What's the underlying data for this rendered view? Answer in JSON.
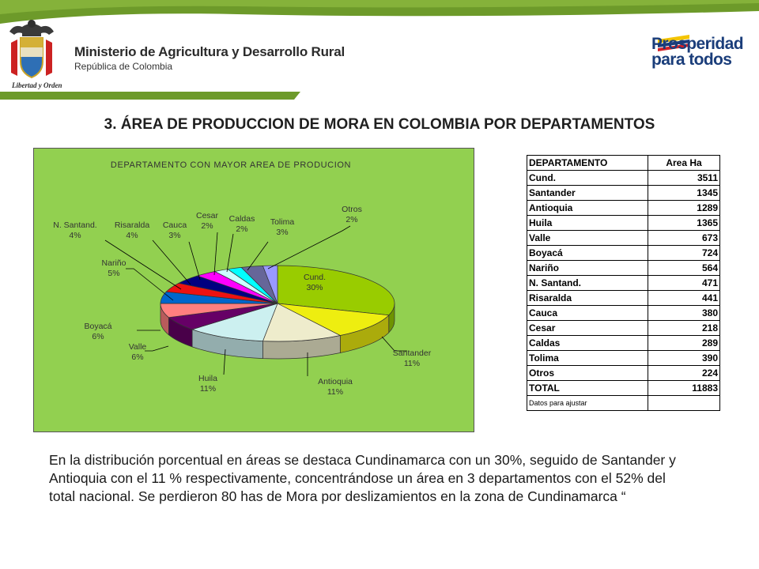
{
  "header": {
    "ministry_name": "Ministerio de Agricultura y Desarrollo Rural",
    "ministry_subtitle": "República de Colombia",
    "motto": "Libertad y Orden",
    "brand_line1": "Prosperidad",
    "brand_line2": "para todos",
    "colors": {
      "green_band": "#6d9a2a",
      "brand_blue": "#1a3d7a",
      "brand_red": "#d32027",
      "brand_yellow": "#f4c400"
    },
    "icons": {
      "coat_of_arms": "coat-of-arms-icon",
      "brand_flag": "flag-stripes-icon"
    }
  },
  "slide_title": "3. ÁREA DE PRODUCCION DE MORA EN COLOMBIA POR DEPARTAMENTOS",
  "chart_data": {
    "type": "pie",
    "title": "DEPARTAMENTO CON MAYOR AREA DE PRODUCION",
    "background": "#92d050",
    "slices": [
      {
        "label": "Cund.",
        "pct": "30%",
        "value": 30,
        "color": "#99cc00"
      },
      {
        "label": "Santander",
        "pct": "11%",
        "value": 11,
        "color": "#eeee10"
      },
      {
        "label": "Antioquia",
        "pct": "11%",
        "value": 11,
        "color": "#eeeccc"
      },
      {
        "label": "Huila",
        "pct": "11%",
        "value": 11,
        "color": "#ccf0f0"
      },
      {
        "label": "Valle",
        "pct": "6%",
        "value": 6,
        "color": "#660066"
      },
      {
        "label": "Boyacá",
        "pct": "6%",
        "value": 6,
        "color": "#ff7f7f"
      },
      {
        "label": "Nariño",
        "pct": "5%",
        "value": 5,
        "color": "#0066cc"
      },
      {
        "label": "N. Santand.",
        "pct": "4%",
        "value": 4,
        "color": "#ee1111"
      },
      {
        "label": "Risaralda",
        "pct": "4%",
        "value": 4,
        "color": "#000080"
      },
      {
        "label": "Cauca",
        "pct": "3%",
        "value": 3,
        "color": "#ff00ff"
      },
      {
        "label": "Cesar",
        "pct": "2%",
        "value": 2,
        "color": "#ccffff"
      },
      {
        "label": "Caldas",
        "pct": "2%",
        "value": 2,
        "color": "#00ffff"
      },
      {
        "label": "Tolima",
        "pct": "3%",
        "value": 3,
        "color": "#666699"
      },
      {
        "label": "Otros",
        "pct": "2%",
        "value": 2,
        "color": "#9999ff"
      }
    ]
  },
  "table": {
    "headers": [
      "DEPARTAMENTO",
      "Area Ha"
    ],
    "rows": [
      {
        "dep": "Cund.",
        "area": "3511"
      },
      {
        "dep": "Santander",
        "area": "1345"
      },
      {
        "dep": "Antioquia",
        "area": "1289"
      },
      {
        "dep": "Huila",
        "area": "1365"
      },
      {
        "dep": "Valle",
        "area": "673"
      },
      {
        "dep": "Boyacá",
        "area": "724"
      },
      {
        "dep": "Nariño",
        "area": "564"
      },
      {
        "dep": "N. Santand.",
        "area": "471"
      },
      {
        "dep": "Risaralda",
        "area": "441"
      },
      {
        "dep": "Cauca",
        "area": "380"
      },
      {
        "dep": "Cesar",
        "area": "218"
      },
      {
        "dep": "Caldas",
        "area": "289"
      },
      {
        "dep": "Tolima",
        "area": "390"
      },
      {
        "dep": "Otros",
        "area": "224"
      },
      {
        "dep": "TOTAL",
        "area": "11883"
      }
    ],
    "note": "Datos para ajustar"
  },
  "paragraph": "En la distribución porcentual en áreas se destaca Cundinamarca con un 30%, seguido de Santander y Antioquia con el 11 % respectivamente, concentrándose un área en 3 departamentos con el 52% del total nacional. Se perdieron 80 has de Mora por deslizamientos en la zona de Cundinamarca “"
}
